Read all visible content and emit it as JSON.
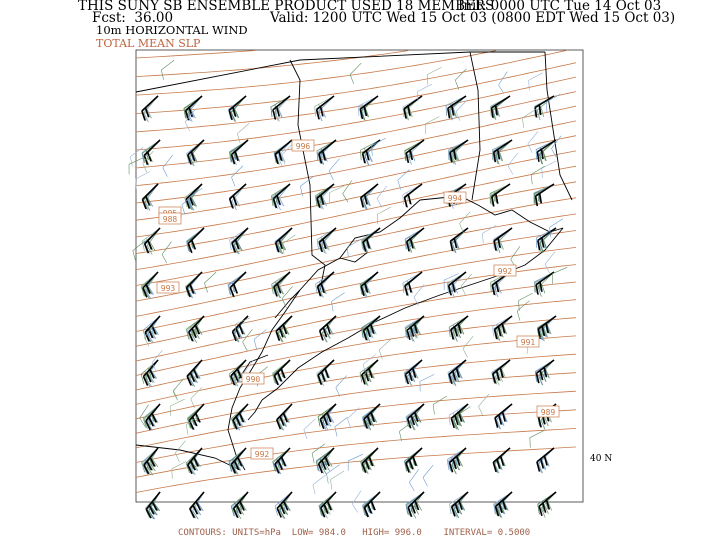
{
  "header": {
    "line1_left": "THIS SUNY SB ENSEMBLE PRODUCT USED 18 MEMBERS",
    "line1_right": "Init: 0000 UTC Tue 14 Oct 03",
    "line2_left": "Fcst:  36.00",
    "line2_right": "Valid: 1200 UTC Wed 15 Oct 03 (0800 EDT Wed 15 Oct 03)",
    "line3": "10m HORIZONTAL WIND",
    "line4": "TOTAL MEAN SLP"
  },
  "contour_labels": [
    "996",
    "995",
    "994",
    "993",
    "992",
    "992",
    "991",
    "990",
    "989",
    "988"
  ],
  "lat_label": "40 N",
  "footer": "CONTOURS: UNITS=hPa  LOW= 984.0   HIGH= 996.0    INTERVAL= 0.5000",
  "colors": {
    "slp_contour": "#c87a4a",
    "ensemble_barbs": [
      "#6f9ccc",
      "#5e8f5e",
      "#8fb08f",
      "#9ab3d6"
    ],
    "mean_barb": "#000000",
    "coastline": "#000000"
  }
}
